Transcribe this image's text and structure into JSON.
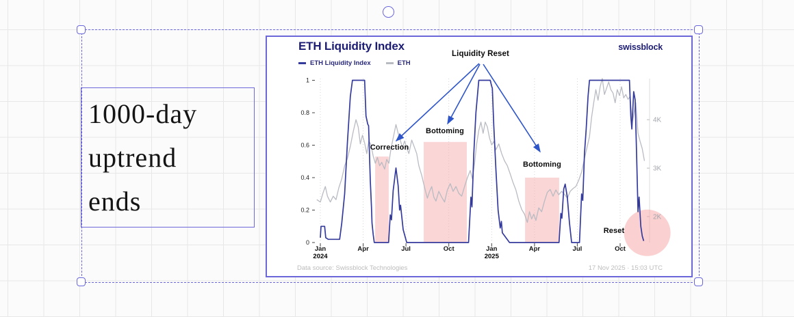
{
  "canvas": {
    "annotation": {
      "lines": [
        "1000-day",
        "uptrend",
        "ends"
      ]
    }
  },
  "chart": {
    "title": "ETH Liquidity Index",
    "brand": "swissblock",
    "legend": [
      {
        "label": "ETH Liquidity Index",
        "color": "#343a9c"
      },
      {
        "label": "ETH",
        "color": "#b9bbc3"
      }
    ],
    "annotations": {
      "liquidity_reset": "Liquidity Reset"
    },
    "footer": {
      "source": "Data source: Swissblock Technologies",
      "timestamp": "17 Nov 2025 · 15:03 UTC"
    }
  },
  "chart_data": {
    "type": "line",
    "title": "ETH Liquidity Index",
    "x_unit": "months since Jan 2024",
    "x_ticks": [
      {
        "m": 0,
        "label": "Jan",
        "year": "2024"
      },
      {
        "m": 3,
        "label": "Apr"
      },
      {
        "m": 6,
        "label": "Jul"
      },
      {
        "m": 9,
        "label": "Oct"
      },
      {
        "m": 12,
        "label": "Jan",
        "year": "2025"
      },
      {
        "m": 15,
        "label": "Apr"
      },
      {
        "m": 18,
        "label": "Jul"
      },
      {
        "m": 21,
        "label": "Oct"
      }
    ],
    "y_left": {
      "range": [
        0,
        1
      ],
      "ticks": [
        "1",
        "0.8",
        "0.6",
        "0.4",
        "0.2",
        "0"
      ]
    },
    "y_right": {
      "range_k": [
        1.8,
        4.9
      ],
      "ticks": [
        "4K",
        "3K",
        "2K"
      ]
    },
    "grid": "dotted-vertical-quarters",
    "legend_position": "top-left",
    "series": [
      {
        "name": "ETH Liquidity Index",
        "axis": "left",
        "color": "#343a9c",
        "points": [
          [
            0,
            0.03
          ],
          [
            0.05,
            0.1
          ],
          [
            0.3,
            0.1
          ],
          [
            0.38,
            0.03
          ],
          [
            0.55,
            0.02
          ],
          [
            1.35,
            0.02
          ],
          [
            1.5,
            0.12
          ],
          [
            1.7,
            0.3
          ],
          [
            1.9,
            0.62
          ],
          [
            2.1,
            0.9
          ],
          [
            2.25,
            1
          ],
          [
            3.1,
            1
          ],
          [
            3.2,
            0.78
          ],
          [
            3.32,
            0.73
          ],
          [
            3.38,
            0.72
          ],
          [
            3.5,
            0.38
          ],
          [
            3.58,
            0.22
          ],
          [
            3.62,
            0.12
          ],
          [
            3.7,
            0.05
          ],
          [
            3.78,
            0
          ],
          [
            4.78,
            0
          ],
          [
            4.9,
            0.17
          ],
          [
            4.98,
            0.14
          ],
          [
            5.1,
            0.32
          ],
          [
            5.3,
            0.46
          ],
          [
            5.45,
            0.35
          ],
          [
            5.55,
            0.2
          ],
          [
            5.62,
            0.23
          ],
          [
            5.8,
            0.08
          ],
          [
            6.05,
            0
          ],
          [
            10.38,
            0
          ],
          [
            10.55,
            0.28
          ],
          [
            10.62,
            0.22
          ],
          [
            10.75,
            0.55
          ],
          [
            10.9,
            0.8
          ],
          [
            11.1,
            1
          ],
          [
            11.9,
            1
          ],
          [
            11.98,
            0.97
          ],
          [
            12.05,
            0.95
          ],
          [
            12.15,
            0.72
          ],
          [
            12.3,
            0.45
          ],
          [
            12.45,
            0.2
          ],
          [
            12.6,
            0.09
          ],
          [
            12.68,
            0.13
          ],
          [
            12.75,
            0.06
          ],
          [
            13.25,
            0
          ],
          [
            16.72,
            0
          ],
          [
            16.85,
            0.18
          ],
          [
            16.92,
            0.15
          ],
          [
            17.05,
            0.33
          ],
          [
            17.15,
            0.36
          ],
          [
            17.3,
            0.28
          ],
          [
            17.45,
            0.12
          ],
          [
            17.6,
            0
          ],
          [
            18.15,
            0
          ],
          [
            18.3,
            0.3
          ],
          [
            18.38,
            0.26
          ],
          [
            18.5,
            0.55
          ],
          [
            18.62,
            0.7
          ],
          [
            18.75,
            0.9
          ],
          [
            18.85,
            1
          ],
          [
            21.65,
            1
          ],
          [
            21.75,
            0.78
          ],
          [
            21.82,
            0.7
          ],
          [
            21.95,
            0.93
          ],
          [
            22.05,
            0.88
          ],
          [
            22.15,
            0.55
          ],
          [
            22.25,
            0.19
          ],
          [
            22.33,
            0.28
          ],
          [
            22.45,
            0.1
          ],
          [
            22.55,
            0.04
          ],
          [
            22.65,
            0.01
          ]
        ]
      },
      {
        "name": "ETH",
        "axis": "right",
        "color": "#b9bbc3",
        "points": [
          [
            -0.25,
            2.35
          ],
          [
            0,
            2.3
          ],
          [
            0.2,
            2.5
          ],
          [
            0.35,
            2.62
          ],
          [
            0.5,
            2.42
          ],
          [
            0.7,
            2.3
          ],
          [
            0.9,
            2.42
          ],
          [
            1.1,
            2.35
          ],
          [
            1.3,
            2.6
          ],
          [
            1.5,
            2.78
          ],
          [
            1.7,
            3.05
          ],
          [
            1.9,
            3.2
          ],
          [
            2.1,
            3.45
          ],
          [
            2.3,
            3.75
          ],
          [
            2.5,
            4.0
          ],
          [
            2.65,
            3.85
          ],
          [
            2.8,
            3.5
          ],
          [
            2.95,
            3.68
          ],
          [
            3.1,
            3.52
          ],
          [
            3.25,
            3.3
          ],
          [
            3.4,
            3.56
          ],
          [
            3.55,
            3.48
          ],
          [
            3.7,
            3.25
          ],
          [
            3.85,
            3.1
          ],
          [
            4.0,
            3.22
          ],
          [
            4.15,
            3.05
          ],
          [
            4.3,
            3.12
          ],
          [
            4.5,
            2.98
          ],
          [
            4.65,
            3.18
          ],
          [
            4.8,
            3.1
          ],
          [
            4.95,
            3.4
          ],
          [
            5.1,
            3.62
          ],
          [
            5.3,
            3.9
          ],
          [
            5.45,
            3.72
          ],
          [
            5.6,
            3.58
          ],
          [
            5.75,
            3.42
          ],
          [
            5.9,
            3.56
          ],
          [
            6.05,
            3.42
          ],
          [
            6.2,
            3.3
          ],
          [
            6.4,
            3.58
          ],
          [
            6.6,
            3.42
          ],
          [
            6.75,
            3.3
          ],
          [
            6.9,
            3.05
          ],
          [
            7.1,
            2.85
          ],
          [
            7.3,
            2.6
          ],
          [
            7.5,
            2.38
          ],
          [
            7.65,
            2.52
          ],
          [
            7.8,
            2.62
          ],
          [
            7.95,
            2.4
          ],
          [
            8.1,
            2.32
          ],
          [
            8.3,
            2.52
          ],
          [
            8.5,
            2.4
          ],
          [
            8.7,
            2.3
          ],
          [
            8.9,
            2.55
          ],
          [
            9.1,
            2.68
          ],
          [
            9.3,
            2.52
          ],
          [
            9.5,
            2.62
          ],
          [
            9.7,
            2.48
          ],
          [
            9.9,
            2.42
          ],
          [
            10.1,
            2.62
          ],
          [
            10.3,
            2.8
          ],
          [
            10.5,
            2.95
          ],
          [
            10.65,
            2.78
          ],
          [
            10.8,
            3.1
          ],
          [
            10.95,
            3.5
          ],
          [
            11.1,
            3.78
          ],
          [
            11.25,
            3.95
          ],
          [
            11.4,
            3.72
          ],
          [
            11.55,
            3.95
          ],
          [
            11.7,
            3.85
          ],
          [
            11.85,
            3.62
          ],
          [
            12.0,
            3.48
          ],
          [
            12.15,
            3.55
          ],
          [
            12.3,
            3.38
          ],
          [
            12.5,
            3.5
          ],
          [
            12.7,
            3.3
          ],
          [
            12.9,
            3.15
          ],
          [
            13.1,
            3.05
          ],
          [
            13.3,
            2.88
          ],
          [
            13.5,
            2.7
          ],
          [
            13.7,
            2.55
          ],
          [
            13.9,
            2.32
          ],
          [
            14.1,
            2.15
          ],
          [
            14.3,
            2.05
          ],
          [
            14.5,
            1.88
          ],
          [
            14.65,
            2.1
          ],
          [
            14.8,
            1.95
          ],
          [
            14.95,
            2.05
          ],
          [
            15.1,
            1.92
          ],
          [
            15.3,
            2.18
          ],
          [
            15.5,
            2.1
          ],
          [
            15.7,
            2.32
          ],
          [
            15.9,
            2.5
          ],
          [
            16.1,
            2.56
          ],
          [
            16.3,
            2.42
          ],
          [
            16.5,
            2.55
          ],
          [
            16.7,
            2.45
          ],
          [
            16.9,
            2.52
          ],
          [
            17.1,
            2.46
          ],
          [
            17.3,
            2.38
          ],
          [
            17.5,
            2.52
          ],
          [
            17.7,
            2.58
          ],
          [
            17.9,
            2.62
          ],
          [
            18.1,
            2.75
          ],
          [
            18.3,
            2.92
          ],
          [
            18.5,
            3.2
          ],
          [
            18.7,
            3.45
          ],
          [
            18.85,
            3.65
          ],
          [
            19.0,
            4.05
          ],
          [
            19.15,
            4.35
          ],
          [
            19.3,
            4.62
          ],
          [
            19.45,
            4.4
          ],
          [
            19.6,
            4.68
          ],
          [
            19.75,
            4.85
          ],
          [
            19.9,
            4.52
          ],
          [
            20.05,
            4.65
          ],
          [
            20.2,
            4.78
          ],
          [
            20.35,
            4.62
          ],
          [
            20.5,
            4.55
          ],
          [
            20.65,
            4.35
          ],
          [
            20.8,
            4.62
          ],
          [
            20.95,
            4.5
          ],
          [
            21.1,
            4.68
          ],
          [
            21.25,
            4.45
          ],
          [
            21.4,
            4.52
          ],
          [
            21.55,
            4.42
          ],
          [
            21.7,
            4.48
          ],
          [
            21.85,
            3.95
          ],
          [
            21.95,
            4.1
          ],
          [
            22.1,
            4.35
          ],
          [
            22.25,
            3.72
          ],
          [
            22.4,
            3.55
          ],
          [
            22.55,
            3.4
          ],
          [
            22.7,
            3.15
          ]
        ]
      }
    ],
    "highlight_bands": [
      {
        "label": "Correction",
        "m_start": 3.84,
        "m_end": 4.79,
        "top_value": 0.53
      },
      {
        "label": "Bottoming",
        "m_start": 7.24,
        "m_end": 10.26,
        "top_value": 0.62
      },
      {
        "label": "Bottoming",
        "m_start": 14.34,
        "m_end": 16.73,
        "top_value": 0.4
      }
    ],
    "highlight_circle": {
      "label": "Reset",
      "m_center": 22.9,
      "value_center": 0.06,
      "radius_px": 34
    },
    "highlight_color": "#f5b5b5"
  }
}
